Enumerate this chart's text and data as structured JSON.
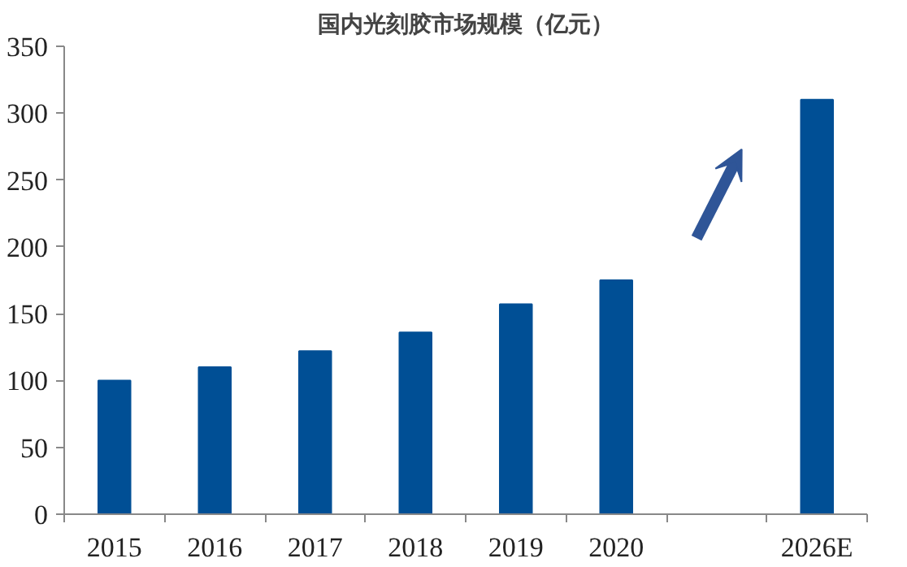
{
  "chart_data": {
    "type": "bar",
    "title": "国内光刻胶市场规模（亿元）",
    "categories": [
      "2015",
      "2016",
      "2017",
      "2018",
      "2019",
      "2020",
      null,
      "2026E"
    ],
    "values": [
      100,
      110,
      122,
      136,
      157,
      175,
      null,
      310
    ],
    "color": "#004f95",
    "ylim": [
      0,
      350
    ],
    "yticks": [
      0,
      50,
      100,
      150,
      200,
      250,
      300,
      350
    ],
    "grid": false
  }
}
